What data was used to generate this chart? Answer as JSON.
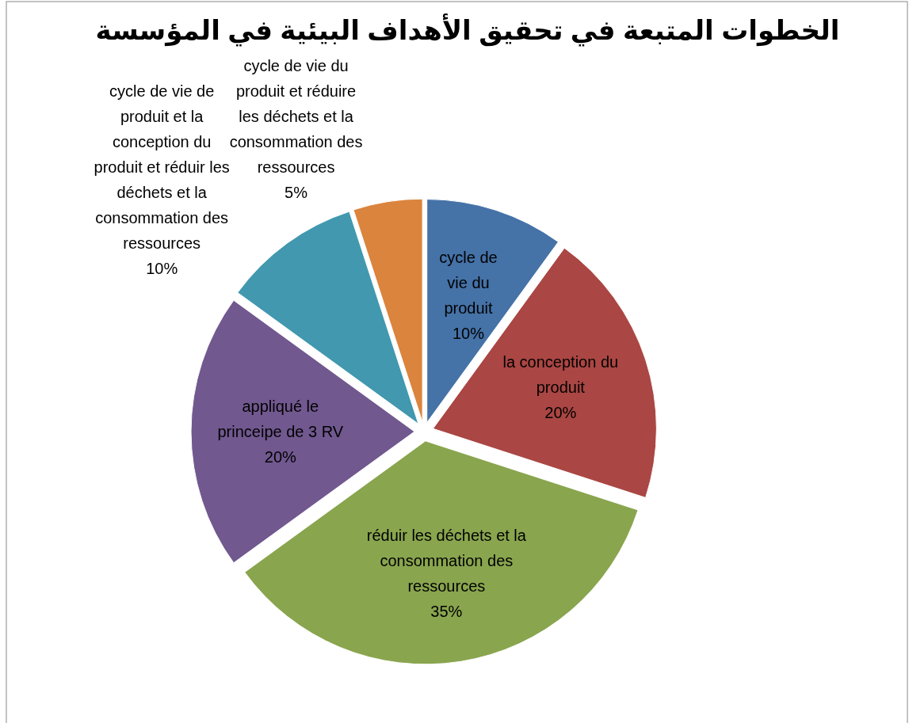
{
  "chart_data": {
    "type": "pie",
    "title": "الخطوات المتبعة في تحقيق الأهداف البيئية في المؤسسة",
    "categories": [
      "cycle de vie du produit",
      "la conception du produit",
      "réduir les déchets et la consommation des ressources",
      "appliqué le princeipe de 3 RV",
      "cycle de vie de produit et la conception du produit et réduir les déchets et la consommation des ressources",
      "cycle de vie du produit et réduire les déchets et la consommation des ressources"
    ],
    "values": [
      10,
      20,
      35,
      20,
      10,
      5
    ],
    "value_labels": [
      "10%",
      "20%",
      "35%",
      "20%",
      "10%",
      "5%"
    ],
    "colors": [
      "#4572a7",
      "#aa4643",
      "#89a54e",
      "#71588f",
      "#4198af",
      "#db843d"
    ]
  }
}
